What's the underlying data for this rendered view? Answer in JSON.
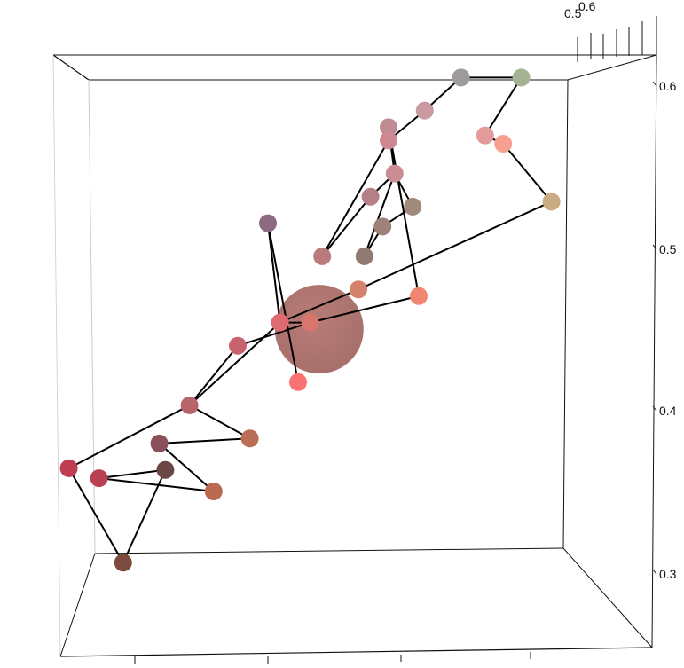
{
  "chart_data": {
    "type": "scatter",
    "subtype": "3d-scatter-with-path",
    "title": "",
    "xlabel": "",
    "ylabel": "",
    "zlabel": "",
    "grid": false,
    "z_axis": {
      "range": [
        0.27,
        0.63
      ],
      "ticks": [
        {
          "value": 0.3,
          "label": "0.3"
        },
        {
          "value": 0.4,
          "label": "0.4"
        },
        {
          "value": 0.5,
          "label": "0.5"
        },
        {
          "value": 0.6,
          "label": "0.6"
        }
      ]
    },
    "depth_axis": {
      "ticks": [
        {
          "value": 0.5,
          "label": "0.5"
        },
        {
          "value": 0.6,
          "label": "0.6"
        }
      ]
    },
    "centroid": {
      "x_screen_frac": 0.485,
      "z": 0.458,
      "color": "#a8706a"
    },
    "points": [
      {
        "id": 1,
        "x": 0.16,
        "z": 0.317,
        "color": "#7d4a3e"
      },
      {
        "id": 2,
        "x": 0.12,
        "z": 0.368,
        "color": "#b8404f"
      },
      {
        "id": 3,
        "x": 0.23,
        "z": 0.373,
        "color": "#6b4646"
      },
      {
        "id": 4,
        "x": 0.07,
        "z": 0.374,
        "color": "#bf3d52"
      },
      {
        "id": 5,
        "x": 0.31,
        "z": 0.36,
        "color": "#b96a4f"
      },
      {
        "id": 6,
        "x": 0.22,
        "z": 0.389,
        "color": "#8a4f58"
      },
      {
        "id": 7,
        "x": 0.37,
        "z": 0.392,
        "color": "#bb6e56"
      },
      {
        "id": 8,
        "x": 0.27,
        "z": 0.412,
        "color": "#b8646a"
      },
      {
        "id": 9,
        "x": 0.35,
        "z": 0.448,
        "color": "#c8626f"
      },
      {
        "id": 10,
        "x": 0.45,
        "z": 0.426,
        "color": "#fa7271"
      },
      {
        "id": 11,
        "x": 0.42,
        "z": 0.462,
        "color": "#e06a72"
      },
      {
        "id": 12,
        "x": 0.47,
        "z": 0.462,
        "color": "#d8766c"
      },
      {
        "id": 13,
        "x": 0.4,
        "z": 0.522,
        "color": "#8e6a82"
      },
      {
        "id": 14,
        "x": 0.49,
        "z": 0.502,
        "color": "#bb7a7e"
      },
      {
        "id": 15,
        "x": 0.55,
        "z": 0.482,
        "color": "#d4826e"
      },
      {
        "id": 16,
        "x": 0.56,
        "z": 0.502,
        "color": "#907a72"
      },
      {
        "id": 17,
        "x": 0.57,
        "z": 0.538,
        "color": "#b57f86"
      },
      {
        "id": 18,
        "x": 0.59,
        "z": 0.52,
        "color": "#9e827a"
      },
      {
        "id": 19,
        "x": 0.61,
        "z": 0.552,
        "color": "#c98d93"
      },
      {
        "id": 20,
        "x": 0.6,
        "z": 0.58,
        "color": "#c08c94"
      },
      {
        "id": 21,
        "x": 0.6,
        "z": 0.572,
        "color": "#cf8791"
      },
      {
        "id": 22,
        "x": 0.64,
        "z": 0.532,
        "color": "#a08a7e"
      },
      {
        "id": 23,
        "x": 0.65,
        "z": 0.478,
        "color": "#ee8670"
      },
      {
        "id": 24,
        "x": 0.66,
        "z": 0.59,
        "color": "#c99aa0"
      },
      {
        "id": 25,
        "x": 0.72,
        "z": 0.61,
        "color": "#9f9b9c"
      },
      {
        "id": 26,
        "x": 0.76,
        "z": 0.575,
        "color": "#e29a9b"
      },
      {
        "id": 27,
        "x": 0.79,
        "z": 0.57,
        "color": "#f7a090"
      },
      {
        "id": 28,
        "x": 0.82,
        "z": 0.61,
        "color": "#a3b394"
      },
      {
        "id": 29,
        "x": 0.87,
        "z": 0.535,
        "color": "#c9ac82"
      }
    ],
    "path_order": [
      10,
      13,
      11,
      12,
      9,
      8,
      7,
      6,
      5,
      2,
      3,
      1,
      4,
      8,
      11,
      15,
      29,
      27,
      26,
      28,
      25,
      24,
      21,
      14,
      17,
      19,
      16,
      18,
      22,
      19,
      20,
      23,
      12
    ]
  }
}
